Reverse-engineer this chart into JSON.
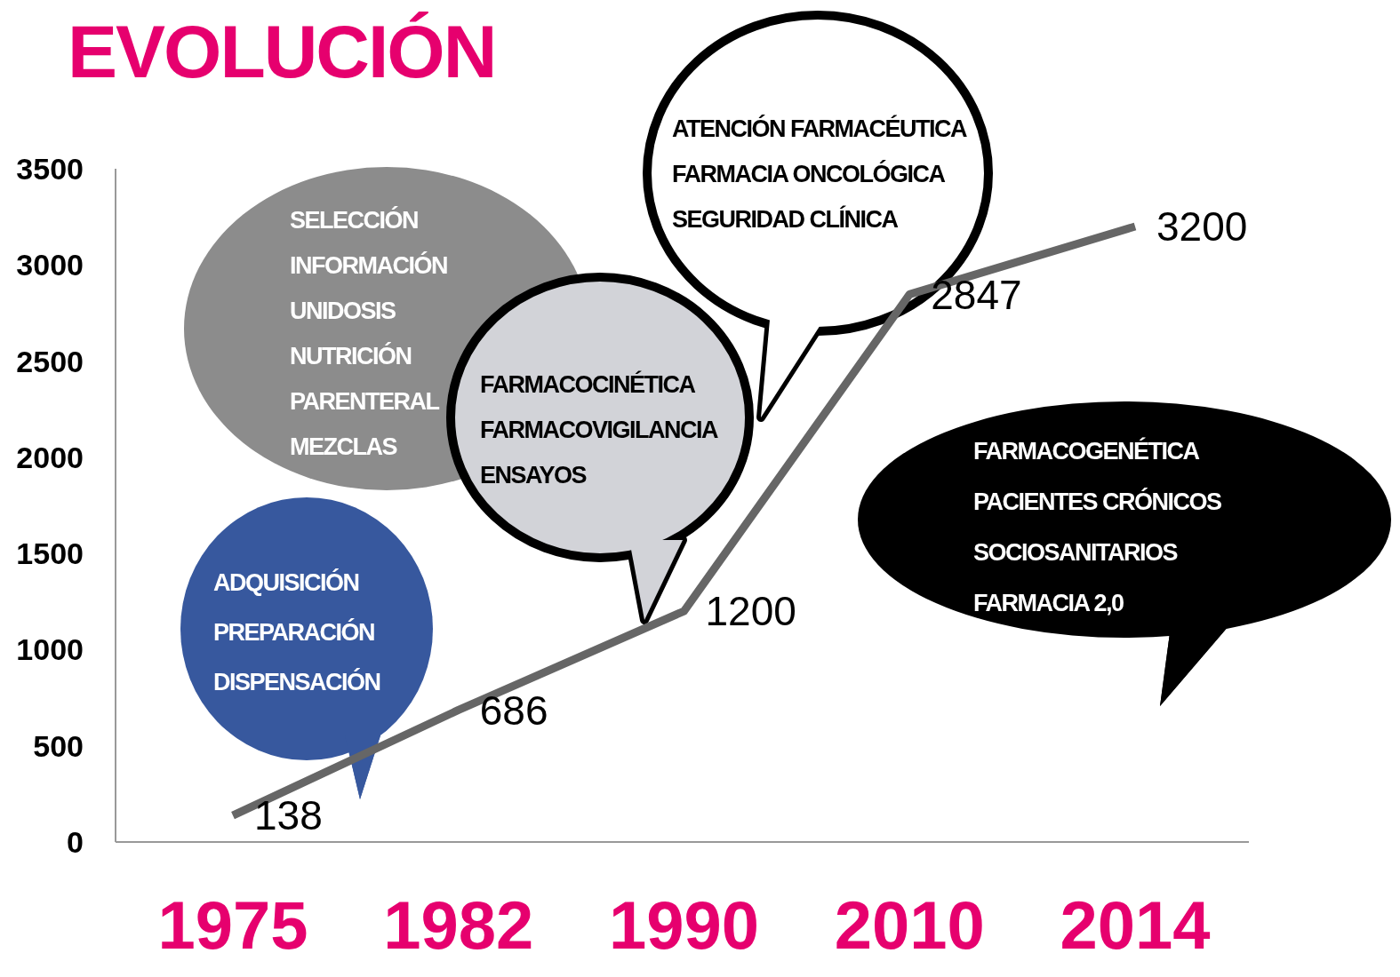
{
  "chart_data": {
    "type": "line",
    "title": "EVOLUCIÓN",
    "categories": [
      "1975",
      "1982",
      "1990",
      "2010",
      "2014"
    ],
    "series": [
      {
        "color": "#666666",
        "values": [
          138,
          686,
          1200,
          2847,
          3200
        ]
      }
    ],
    "ylim": [
      0,
      3500
    ],
    "yticks": [
      0,
      500,
      1000,
      1500,
      2000,
      2500,
      3000,
      3500
    ],
    "grid": false,
    "legend": false,
    "marker": "none",
    "line_style": "solid",
    "data_labels": true,
    "annotations": [
      "SELECCIÓN\nINFORMACIÓN\nUNIDOSIS\nNUTRICIÓN\nPARENTERAL\nMEZCLAS",
      "ADQUISICIÓN\nPREPARACIÓN\nDISPENSACIÓN",
      "FARMACOCINÉTICA\nFARMACOVIGILANCIA\nENSAYOS",
      "ATENCIÓN FARMACÉUTICA\nFARMACIA ONCOLÓGICA\nSEGURIDAD CLÍNICA",
      "FARMACOGENÉTICA\nPACIENTES CRÓNICOS\nSOCIOSANITARIOS\nFARMACIA 2,0"
    ]
  }
}
